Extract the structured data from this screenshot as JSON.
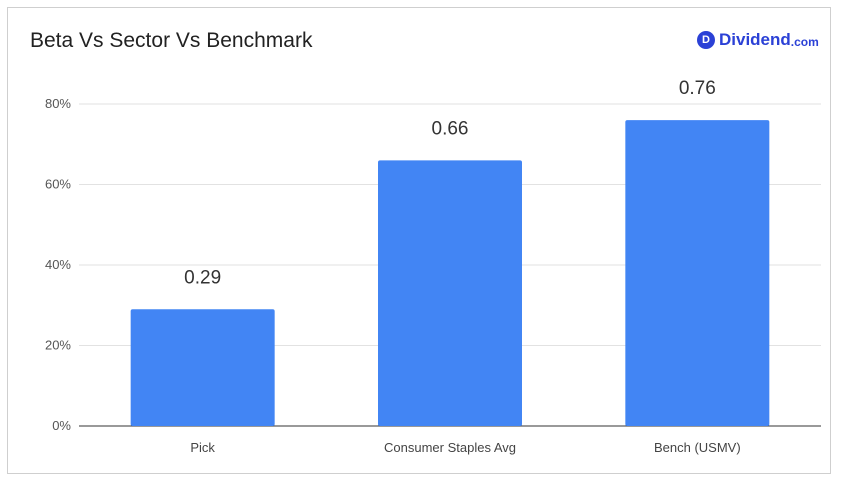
{
  "chart_data": {
    "type": "bar",
    "title": "Beta Vs Sector Vs Benchmark",
    "categories": [
      "Pick",
      "Consumer Staples Avg",
      "Bench (USMV)"
    ],
    "values": [
      0.29,
      0.66,
      0.76
    ],
    "data_labels": [
      "0.29",
      "0.66",
      "0.76"
    ],
    "ylim": [
      0,
      0.8
    ],
    "yticks": [
      0,
      0.2,
      0.4,
      0.6,
      0.8
    ],
    "ytick_labels": [
      "0%",
      "20%",
      "40%",
      "60%",
      "80%"
    ],
    "xlabel": "",
    "ylabel": "",
    "bar_color": "#4285f4",
    "grid": true
  },
  "brand": {
    "mark": "D",
    "name": "Dividend",
    "tld": ".com",
    "color": "#2b41d6"
  }
}
